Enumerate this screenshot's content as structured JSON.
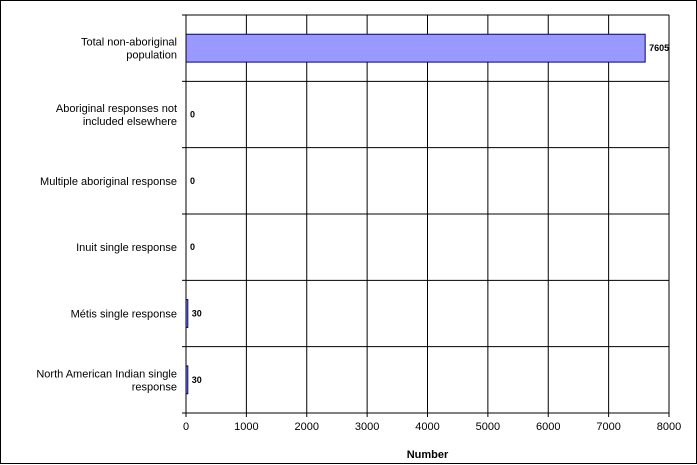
{
  "chart_data": {
    "type": "bar",
    "orientation": "horizontal",
    "categories": [
      "Total non-aboriginal population",
      "Aboriginal responses not included elsewhere",
      "Multiple aboriginal response",
      "Inuit single response",
      "Métis single response",
      "North American Indian single response"
    ],
    "category_label_lines": [
      [
        "Total non-aboriginal",
        "population"
      ],
      [
        "Aboriginal responses not",
        "included elsewhere"
      ],
      [
        "Multiple aboriginal response"
      ],
      [
        "Inuit single response"
      ],
      [
        "Métis single response"
      ],
      [
        "North American Indian single",
        "response"
      ]
    ],
    "values": [
      7605,
      0,
      0,
      0,
      30,
      30
    ],
    "data_labels": [
      "7605",
      "0",
      "0",
      "0",
      "30",
      "30"
    ],
    "xlabel": "Number",
    "ylabel": "",
    "title": "",
    "xlim": [
      0,
      8000
    ],
    "xticks": [
      0,
      1000,
      2000,
      3000,
      4000,
      5000,
      6000,
      7000,
      8000
    ],
    "grid": true,
    "legend": "none",
    "bar_color": "#9999ff",
    "bar_edge_color": "#000080"
  }
}
